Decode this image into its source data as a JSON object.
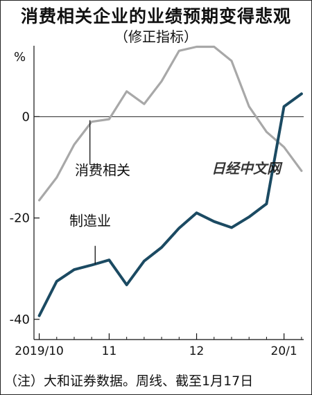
{
  "title": "消费相关企业的业绩预期变得悲观",
  "subtitle": "（修正指标）",
  "note": "（注）大和证券数据。周线、截至1月17日",
  "watermark": "日经中文网",
  "chart_data": {
    "type": "line",
    "unit": "%",
    "ylim": [
      -44,
      14
    ],
    "yticks": [
      0,
      -20,
      -40
    ],
    "ytick_labels": [
      "0",
      "-20",
      "-40"
    ],
    "xticks": [
      {
        "label": "2019/10",
        "week": 0
      },
      {
        "label": "11",
        "week": 4
      },
      {
        "label": "12",
        "week": 9
      },
      {
        "label": "20/1",
        "week": 14
      }
    ],
    "x_week_range": [
      -0.3,
      15.6
    ],
    "grid": false,
    "zero_line": true,
    "series": [
      {
        "name": "消费相关",
        "color": "#a8a8a8",
        "x": [
          0,
          1,
          2,
          3,
          4,
          5,
          6,
          7,
          8,
          9,
          10,
          11,
          12,
          13,
          14,
          15
        ],
        "values": [
          -16.5,
          -12,
          -5.5,
          -1,
          -0.5,
          5,
          2.5,
          7,
          13,
          13.8,
          13.8,
          11,
          2,
          -3,
          -6,
          -10.7
        ]
      },
      {
        "name": "制造业",
        "color": "#1b4a62",
        "x": [
          0,
          1,
          2,
          3,
          4,
          5,
          6,
          7,
          8,
          9,
          10,
          11,
          12,
          13,
          14,
          15
        ],
        "values": [
          -39.3,
          -32.5,
          -30.2,
          -29.3,
          -28.3,
          -33.2,
          -28.5,
          -25.8,
          -22,
          -19,
          -20.7,
          -21.9,
          -19.8,
          -17.2,
          2,
          4.5
        ]
      }
    ],
    "annotations": [
      {
        "text": "消费相关",
        "series": 0
      },
      {
        "text": "制造业",
        "series": 1
      }
    ]
  }
}
